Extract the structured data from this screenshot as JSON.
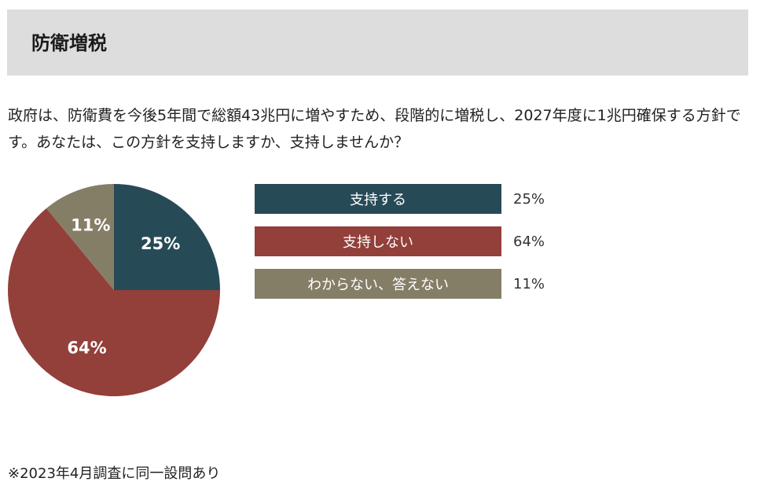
{
  "header": {
    "title": "防衛増税"
  },
  "question": "政府は、防衛費を今後5年間で総額43兆円に増やすため、段階的に増税し、2027年度に1兆円確保する方針です。あなたは、この方針を支持しますか、支持しませんか？",
  "chart_data": {
    "type": "pie",
    "categories": [
      "支持する",
      "支持しない",
      "わからない、答えない"
    ],
    "values": [
      25,
      64,
      11
    ],
    "value_labels": [
      "25%",
      "64%",
      "11%"
    ],
    "colors": [
      "#274a57",
      "#933f3a",
      "#857e67"
    ],
    "start": "12 o'clock",
    "direction": "clockwise",
    "legend_placement": "right"
  },
  "legend": {
    "items": [
      {
        "label": "支持する",
        "pct": "25%",
        "color": "#274a57"
      },
      {
        "label": "支持しない",
        "pct": "64%",
        "color": "#933f3a"
      },
      {
        "label": "わからない、答えない",
        "pct": "11%",
        "color": "#857e67"
      }
    ]
  },
  "footnote": "※2023年4月調査に同一設問あり"
}
